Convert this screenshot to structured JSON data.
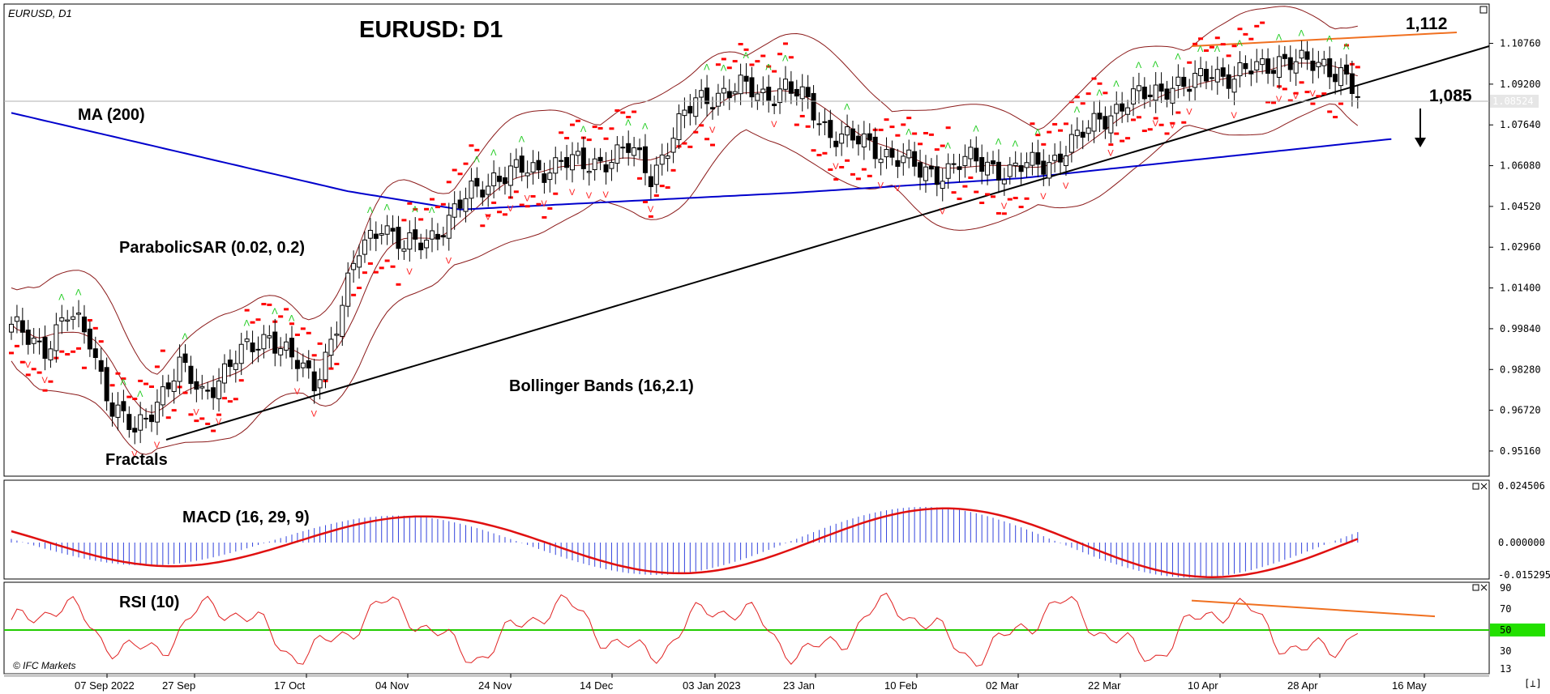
{
  "chart_data": {
    "type": "candlestick",
    "symbol": "EURUSD, D1",
    "title": "EURUSD: D1",
    "copyright": "© IFC Markets",
    "current_price_label": "1.08524",
    "x_tick_labels": [
      "07 Sep 2022",
      "27 Sep",
      "17 Oct",
      "04 Nov",
      "24 Nov",
      "14 Dec",
      "03 Jan 2023",
      "23 Jan",
      "10 Feb",
      "02 Mar",
      "22 Mar",
      "10 Apr",
      "28 Apr",
      "16 May"
    ],
    "price_axis": {
      "ticks": [
        "1.10760",
        "1.09200",
        "1.07640",
        "1.06080",
        "1.04520",
        "1.02960",
        "1.01400",
        "0.99840",
        "0.98280",
        "0.96720",
        "0.95160"
      ],
      "ylim": [
        0.946,
        1.118
      ]
    },
    "indicator_labels": {
      "ma": "MA (200)",
      "psar": "ParabolicSAR (0.02, 0.2)",
      "bollinger": "Bollinger Bands (16,2.1)",
      "fractals": "Fractals",
      "macd": "MACD (16, 29, 9)",
      "rsi": "RSI (10)"
    },
    "annotations": {
      "resistance": "1,112",
      "target": "1,085"
    },
    "anchors": [
      {
        "i": 0,
        "c": 0.998
      },
      {
        "i": 6,
        "c": 0.992
      },
      {
        "i": 10,
        "c": 1.003
      },
      {
        "i": 14,
        "c": 0.995
      },
      {
        "i": 18,
        "c": 0.968
      },
      {
        "i": 22,
        "c": 0.958
      },
      {
        "i": 26,
        "c": 0.972
      },
      {
        "i": 30,
        "c": 0.983
      },
      {
        "i": 34,
        "c": 0.974
      },
      {
        "i": 38,
        "c": 0.982
      },
      {
        "i": 42,
        "c": 0.99
      },
      {
        "i": 46,
        "c": 0.997
      },
      {
        "i": 50,
        "c": 0.986
      },
      {
        "i": 54,
        "c": 0.978
      },
      {
        "i": 58,
        "c": 1.0
      },
      {
        "i": 62,
        "c": 1.028
      },
      {
        "i": 66,
        "c": 1.04
      },
      {
        "i": 70,
        "c": 1.028
      },
      {
        "i": 74,
        "c": 1.033
      },
      {
        "i": 78,
        "c": 1.04
      },
      {
        "i": 82,
        "c": 1.05
      },
      {
        "i": 86,
        "c": 1.057
      },
      {
        "i": 90,
        "c": 1.058
      },
      {
        "i": 94,
        "c": 1.059
      },
      {
        "i": 98,
        "c": 1.063
      },
      {
        "i": 102,
        "c": 1.06
      },
      {
        "i": 106,
        "c": 1.064
      },
      {
        "i": 110,
        "c": 1.067
      },
      {
        "i": 114,
        "c": 1.057
      },
      {
        "i": 118,
        "c": 1.073
      },
      {
        "i": 122,
        "c": 1.085
      },
      {
        "i": 126,
        "c": 1.089
      },
      {
        "i": 130,
        "c": 1.09
      },
      {
        "i": 134,
        "c": 1.088
      },
      {
        "i": 138,
        "c": 1.091
      },
      {
        "i": 142,
        "c": 1.084
      },
      {
        "i": 146,
        "c": 1.074
      },
      {
        "i": 150,
        "c": 1.07
      },
      {
        "i": 154,
        "c": 1.068
      },
      {
        "i": 158,
        "c": 1.064
      },
      {
        "i": 162,
        "c": 1.058
      },
      {
        "i": 166,
        "c": 1.059
      },
      {
        "i": 170,
        "c": 1.062
      },
      {
        "i": 174,
        "c": 1.062
      },
      {
        "i": 178,
        "c": 1.058
      },
      {
        "i": 182,
        "c": 1.061
      },
      {
        "i": 186,
        "c": 1.064
      },
      {
        "i": 190,
        "c": 1.07
      },
      {
        "i": 194,
        "c": 1.08
      },
      {
        "i": 198,
        "c": 1.083
      },
      {
        "i": 202,
        "c": 1.088
      },
      {
        "i": 206,
        "c": 1.092
      },
      {
        "i": 210,
        "c": 1.09
      },
      {
        "i": 214,
        "c": 1.098
      },
      {
        "i": 218,
        "c": 1.094
      },
      {
        "i": 222,
        "c": 1.098
      },
      {
        "i": 226,
        "c": 1.102
      },
      {
        "i": 230,
        "c": 1.099
      },
      {
        "i": 234,
        "c": 1.1
      },
      {
        "i": 237,
        "c": 1.097
      },
      {
        "i": 240,
        "c": 1.086
      }
    ]
  }
}
